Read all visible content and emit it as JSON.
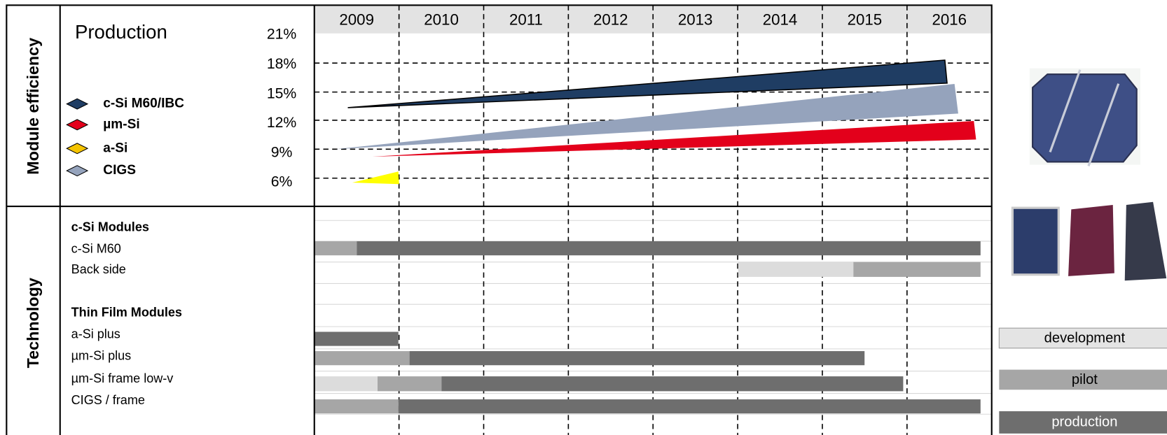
{
  "sections": {
    "top": "Module efficiency",
    "bottom": "Technology"
  },
  "production": {
    "title": "Production",
    "years": [
      "2009",
      "2010",
      "2011",
      "2012",
      "2013",
      "2014",
      "2015",
      "2016"
    ],
    "efficiency_labels": [
      "21%",
      "18%",
      "15%",
      "12%",
      "9%",
      "6%"
    ],
    "legend": [
      "c-Si M60/IBC",
      "µm-Si",
      "a-Si",
      "CIGS"
    ]
  },
  "technology": {
    "rows": [
      "c-Si Modules",
      "c-Si M60",
      "Back side",
      "Thin Film Modules",
      "a-Si plus",
      "µm-Si plus",
      "µm-Si frame low-v",
      "CIGS / frame"
    ]
  },
  "phases": [
    "development",
    "pilot",
    "production"
  ]
}
